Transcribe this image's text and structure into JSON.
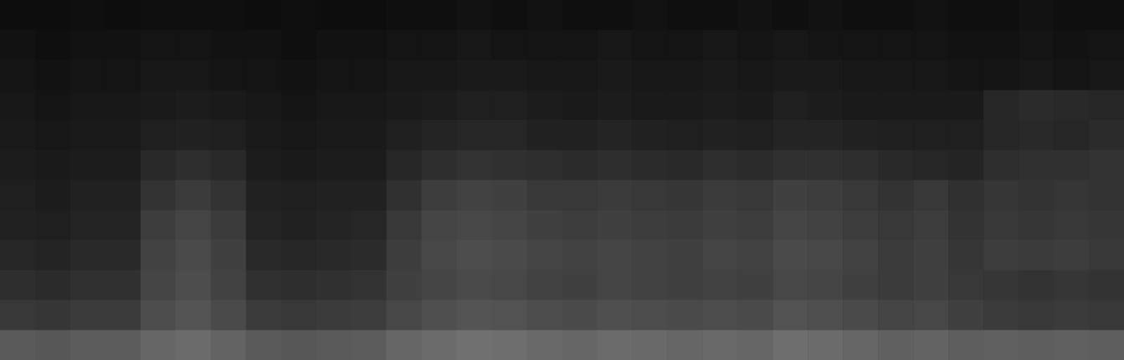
{
  "chart_data": {
    "type": "heatmap",
    "tick_labels": false,
    "zlim": [
      0,
      1
    ],
    "z": [
      [
        0.05,
        0.05,
        0.06,
        0.05,
        0.06,
        0.06,
        0.06,
        0.05,
        0.06,
        0.05,
        0.05,
        0.06,
        0.06,
        0.07,
        0.06,
        0.07,
        0.06,
        0.06,
        0.07,
        0.06,
        0.06,
        0.07,
        0.06,
        0.07,
        0.06,
        0.06,
        0.07,
        0.06,
        0.06,
        0.07,
        0.06,
        0.06
      ],
      [
        0.07,
        0.06,
        0.07,
        0.07,
        0.08,
        0.08,
        0.07,
        0.07,
        0.06,
        0.07,
        0.07,
        0.08,
        0.08,
        0.09,
        0.08,
        0.08,
        0.08,
        0.09,
        0.08,
        0.08,
        0.09,
        0.08,
        0.09,
        0.08,
        0.08,
        0.08,
        0.08,
        0.07,
        0.07,
        0.08,
        0.07,
        0.08
      ],
      [
        0.08,
        0.07,
        0.08,
        0.08,
        0.09,
        0.09,
        0.08,
        0.08,
        0.07,
        0.08,
        0.08,
        0.09,
        0.09,
        0.1,
        0.1,
        0.09,
        0.09,
        0.1,
        0.09,
        0.09,
        0.1,
        0.09,
        0.1,
        0.1,
        0.09,
        0.09,
        0.09,
        0.08,
        0.08,
        0.09,
        0.08,
        0.09
      ],
      [
        0.09,
        0.08,
        0.09,
        0.09,
        0.1,
        0.11,
        0.1,
        0.09,
        0.08,
        0.09,
        0.09,
        0.1,
        0.11,
        0.12,
        0.12,
        0.11,
        0.1,
        0.11,
        0.1,
        0.1,
        0.11,
        0.1,
        0.12,
        0.11,
        0.1,
        0.1,
        0.1,
        0.1,
        0.15,
        0.17,
        0.16,
        0.15
      ],
      [
        0.1,
        0.09,
        0.1,
        0.1,
        0.12,
        0.13,
        0.12,
        0.1,
        0.09,
        0.1,
        0.1,
        0.12,
        0.14,
        0.15,
        0.15,
        0.13,
        0.13,
        0.14,
        0.13,
        0.12,
        0.13,
        0.12,
        0.14,
        0.14,
        0.13,
        0.12,
        0.12,
        0.12,
        0.15,
        0.16,
        0.15,
        0.17
      ],
      [
        0.11,
        0.1,
        0.11,
        0.11,
        0.16,
        0.18,
        0.16,
        0.11,
        0.1,
        0.11,
        0.11,
        0.15,
        0.18,
        0.2,
        0.19,
        0.18,
        0.17,
        0.18,
        0.17,
        0.16,
        0.18,
        0.17,
        0.19,
        0.19,
        0.18,
        0.16,
        0.15,
        0.14,
        0.18,
        0.19,
        0.19,
        0.2
      ],
      [
        0.12,
        0.11,
        0.13,
        0.13,
        0.2,
        0.23,
        0.2,
        0.13,
        0.12,
        0.13,
        0.13,
        0.19,
        0.24,
        0.26,
        0.25,
        0.22,
        0.22,
        0.23,
        0.22,
        0.21,
        0.23,
        0.22,
        0.25,
        0.24,
        0.22,
        0.2,
        0.22,
        0.19,
        0.21,
        0.2,
        0.21,
        0.2
      ],
      [
        0.13,
        0.12,
        0.14,
        0.14,
        0.24,
        0.27,
        0.23,
        0.14,
        0.13,
        0.14,
        0.15,
        0.22,
        0.27,
        0.28,
        0.27,
        0.25,
        0.24,
        0.25,
        0.24,
        0.23,
        0.25,
        0.24,
        0.27,
        0.26,
        0.24,
        0.22,
        0.24,
        0.2,
        0.22,
        0.21,
        0.22,
        0.21
      ],
      [
        0.15,
        0.14,
        0.16,
        0.16,
        0.26,
        0.29,
        0.25,
        0.16,
        0.15,
        0.16,
        0.17,
        0.24,
        0.28,
        0.3,
        0.29,
        0.27,
        0.26,
        0.27,
        0.26,
        0.25,
        0.27,
        0.26,
        0.29,
        0.28,
        0.26,
        0.23,
        0.25,
        0.21,
        0.24,
        0.23,
        0.24,
        0.22
      ],
      [
        0.18,
        0.17,
        0.19,
        0.19,
        0.27,
        0.3,
        0.26,
        0.19,
        0.18,
        0.19,
        0.2,
        0.25,
        0.27,
        0.29,
        0.28,
        0.26,
        0.25,
        0.27,
        0.26,
        0.25,
        0.26,
        0.25,
        0.28,
        0.27,
        0.25,
        0.23,
        0.25,
        0.22,
        0.21,
        0.2,
        0.21,
        0.2
      ],
      [
        0.22,
        0.21,
        0.23,
        0.23,
        0.3,
        0.33,
        0.29,
        0.23,
        0.22,
        0.23,
        0.24,
        0.28,
        0.31,
        0.33,
        0.32,
        0.3,
        0.29,
        0.31,
        0.3,
        0.29,
        0.3,
        0.29,
        0.32,
        0.31,
        0.29,
        0.27,
        0.28,
        0.25,
        0.23,
        0.22,
        0.23,
        0.22
      ],
      [
        0.35,
        0.34,
        0.36,
        0.36,
        0.4,
        0.42,
        0.39,
        0.35,
        0.34,
        0.35,
        0.36,
        0.4,
        0.42,
        0.44,
        0.43,
        0.41,
        0.4,
        0.42,
        0.41,
        0.4,
        0.41,
        0.4,
        0.43,
        0.42,
        0.4,
        0.38,
        0.39,
        0.37,
        0.38,
        0.37,
        0.38,
        0.37
      ]
    ]
  }
}
